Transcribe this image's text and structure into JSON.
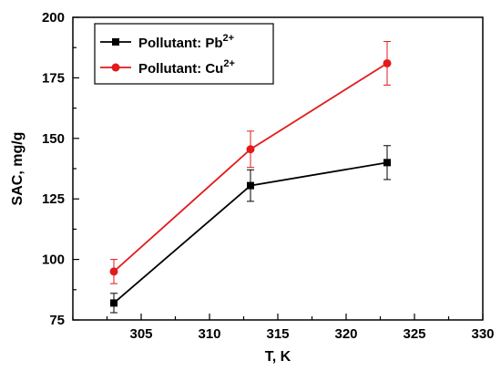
{
  "chart_data": {
    "type": "line",
    "title": "",
    "xlabel": "T, K",
    "ylabel": "SAC, mg/g",
    "xlim": [
      300,
      330
    ],
    "ylim": [
      75,
      200
    ],
    "xticks": [
      305,
      310,
      315,
      320,
      325,
      330
    ],
    "yticks": [
      75,
      100,
      125,
      150,
      175,
      200
    ],
    "x_minor_step": 2.5,
    "y_minor_step": 12.5,
    "grid": false,
    "legend_position": "top-left",
    "series": [
      {
        "name": "Pollutant: Pb",
        "name_sup": "2+",
        "color": "#000000",
        "marker": "square",
        "x": [
          303,
          313,
          323
        ],
        "y": [
          82,
          130.5,
          140
        ],
        "yerr": [
          4,
          6.5,
          7
        ]
      },
      {
        "name": "Pollutant: Cu",
        "name_sup": "2+",
        "color": "#e31a1c",
        "marker": "circle",
        "x": [
          303,
          313,
          323
        ],
        "y": [
          95,
          145.5,
          181
        ],
        "yerr": [
          5,
          7.5,
          9
        ]
      }
    ]
  }
}
